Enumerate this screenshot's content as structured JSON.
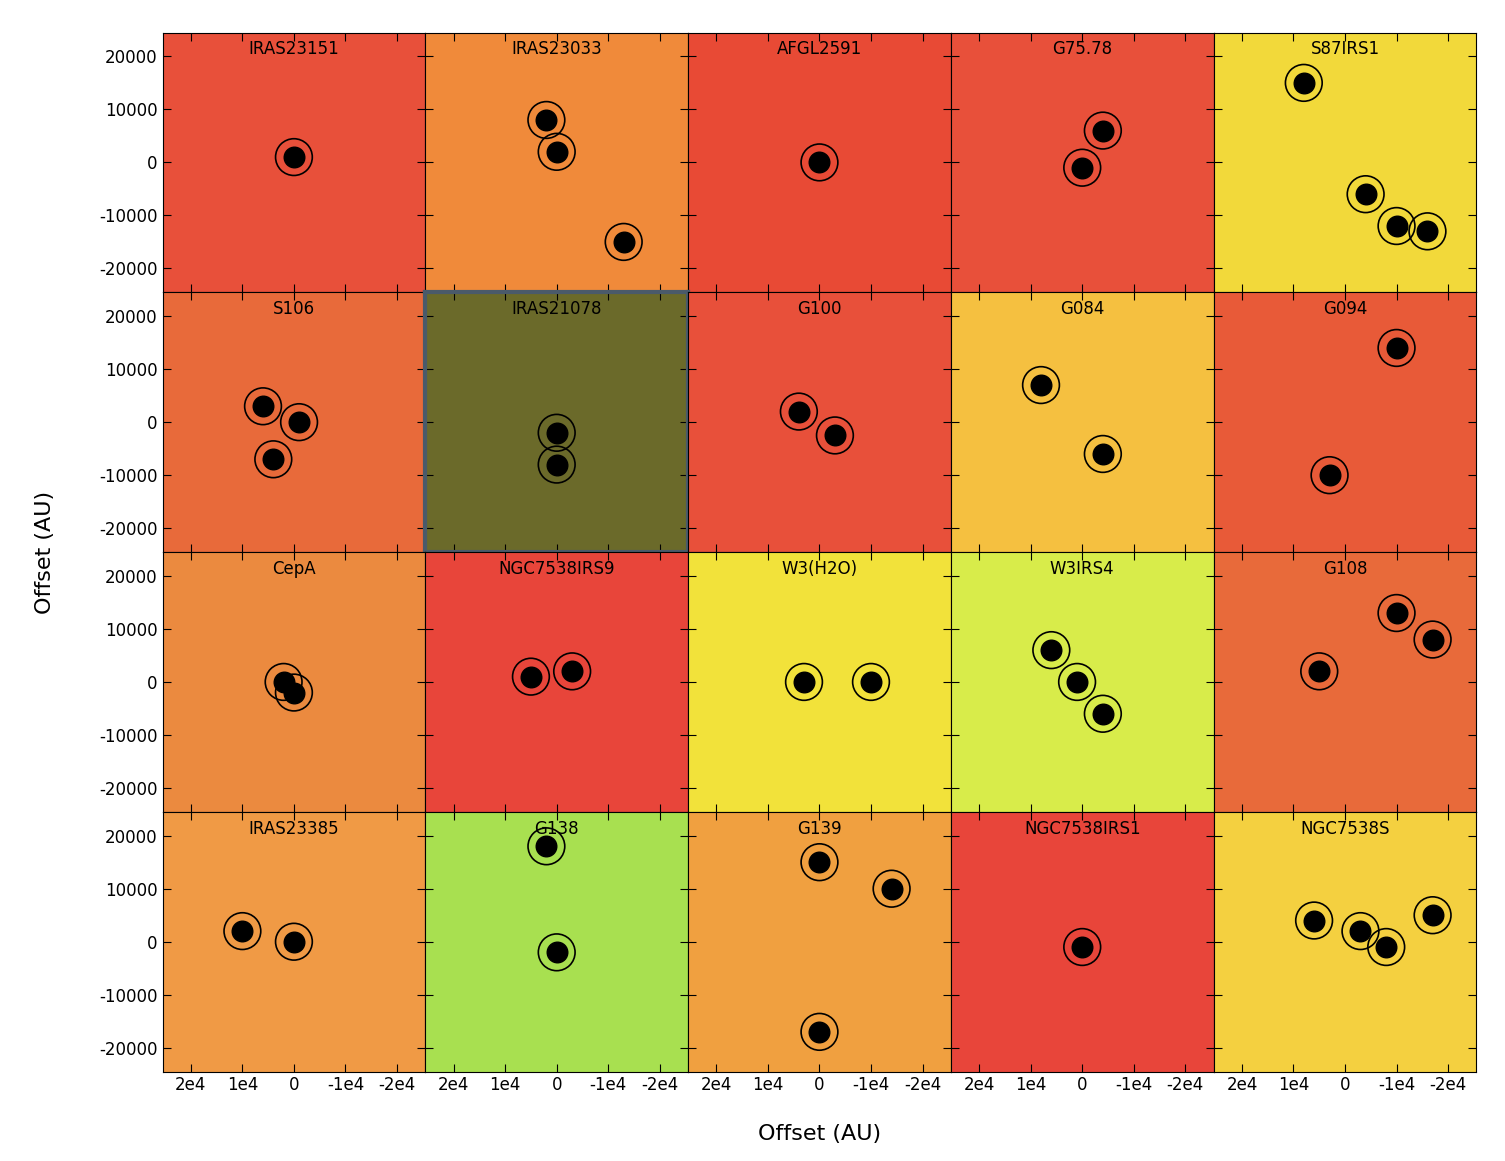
{
  "xlabel": "Offset (AU)",
  "ylabel": "Offset (AU)",
  "chart_data": [
    {
      "type": "scatter",
      "title": "IRAS23151",
      "color": "#e8503a",
      "marker": "o",
      "x": [
        0
      ],
      "y": [
        1000
      ],
      "tick_labels": "y"
    },
    {
      "type": "scatter",
      "title": "IRAS23033",
      "color": "#f08a3a",
      "marker": "o",
      "x": [
        2000,
        0,
        -13000
      ],
      "y": [
        8000,
        2000,
        -15000
      ],
      "tick_labels": false
    },
    {
      "type": "scatter",
      "title": "AFGL2591",
      "color": "#e84a35",
      "marker": "o",
      "x": [
        0
      ],
      "y": [
        0
      ],
      "tick_labels": false
    },
    {
      "type": "scatter",
      "title": "G75.78",
      "color": "#e8503a",
      "marker": "o",
      "x": [
        0,
        -4000
      ],
      "y": [
        -1000,
        6000
      ],
      "tick_labels": false
    },
    {
      "type": "scatter",
      "title": "S87IRS1",
      "color": "#f2d93a",
      "marker": "o",
      "x": [
        8000,
        -10000,
        -16000,
        -4000
      ],
      "y": [
        15000,
        -12000,
        -13000,
        -6000
      ],
      "tick_labels": false
    },
    {
      "type": "scatter",
      "title": "S106",
      "color": "#e86a3a",
      "marker": "o",
      "x": [
        -1000,
        6000,
        4000
      ],
      "y": [
        0,
        3000,
        -7000
      ],
      "tick_labels": "y"
    },
    {
      "type": "scatter",
      "title": "IRAS21078",
      "color": "#6b6a2a",
      "marker": "o",
      "x": [
        0,
        0
      ],
      "y": [
        -2000,
        -8000
      ],
      "tick_labels": false
    },
    {
      "type": "scatter",
      "title": "G100",
      "color": "#e8503a",
      "marker": "o",
      "x": [
        -3000,
        4000
      ],
      "y": [
        -2500,
        2000
      ],
      "tick_labels": false
    },
    {
      "type": "scatter",
      "title": "G084",
      "color": "#f5c040",
      "marker": "o",
      "x": [
        8000,
        -4000
      ],
      "y": [
        7000,
        -6000
      ],
      "tick_labels": false
    },
    {
      "type": "scatter",
      "title": "G094",
      "color": "#e85a38",
      "marker": "o",
      "x": [
        3000,
        -10000
      ],
      "y": [
        -10000,
        14000
      ],
      "tick_labels": false
    },
    {
      "type": "scatter",
      "title": "CepA",
      "color": "#eb8a3f",
      "marker": "o",
      "x": [
        0,
        2000
      ],
      "y": [
        -2000,
        0
      ],
      "tick_labels": "y"
    },
    {
      "type": "scatter",
      "title": "NGC7538IRS9",
      "color": "#e8453a",
      "marker": "o",
      "x": [
        -3000,
        5000
      ],
      "y": [
        2000,
        1000
      ],
      "tick_labels": false
    },
    {
      "type": "scatter",
      "title": "W3(H2O)",
      "color": "#f2e23a",
      "marker": "o",
      "x": [
        3000,
        -10000
      ],
      "y": [
        0,
        0
      ],
      "tick_labels": false
    },
    {
      "type": "scatter",
      "title": "W3IRS4",
      "color": "#d8ec4a",
      "marker": "o",
      "x": [
        6000,
        -4000,
        1000
      ],
      "y": [
        6000,
        -6000,
        0
      ],
      "tick_labels": false
    },
    {
      "type": "scatter",
      "title": "G108",
      "color": "#e86a3a",
      "marker": "o",
      "x": [
        5000,
        -10000,
        -17000
      ],
      "y": [
        2000,
        13000,
        8000
      ],
      "tick_labels": false
    },
    {
      "type": "scatter",
      "title": "IRAS23385",
      "color": "#f09a45",
      "marker": "o",
      "x": [
        10000,
        0
      ],
      "y": [
        2000,
        0
      ],
      "tick_labels": true
    },
    {
      "type": "scatter",
      "title": "G138",
      "color": "#a8e050",
      "marker": "o",
      "x": [
        0,
        2000
      ],
      "y": [
        -2000,
        18000
      ],
      "tick_labels": "x"
    },
    {
      "type": "scatter",
      "title": "G139",
      "color": "#f0a040",
      "marker": "o",
      "x": [
        0,
        0,
        -14000
      ],
      "y": [
        15000,
        -17000,
        10000
      ],
      "tick_labels": "x"
    },
    {
      "type": "scatter",
      "title": "NGC7538IRS1",
      "color": "#e8453a",
      "marker": "o",
      "x": [
        0
      ],
      "y": [
        -1000
      ],
      "tick_labels": "x"
    },
    {
      "type": "scatter",
      "title": "NGC7538S",
      "color": "#f4d040",
      "marker": "o",
      "x": [
        6000,
        -3000,
        -8000,
        -17000
      ],
      "y": [
        4000,
        2000,
        -1000,
        5000
      ],
      "tick_labels": "x"
    }
  ],
  "xlim": [
    25500,
    -25500
  ],
  "ylim": [
    -24500,
    24500
  ],
  "xticks": [
    {
      "value": 20000,
      "label": "2e4"
    },
    {
      "value": 10000,
      "label": "1e4"
    },
    0,
    {
      "value": -10000,
      "label": "-1e4"
    },
    {
      "value": -20000,
      "label": "-2e4"
    }
  ],
  "yticks": [
    20000,
    10000,
    0,
    -10000,
    -20000
  ]
}
